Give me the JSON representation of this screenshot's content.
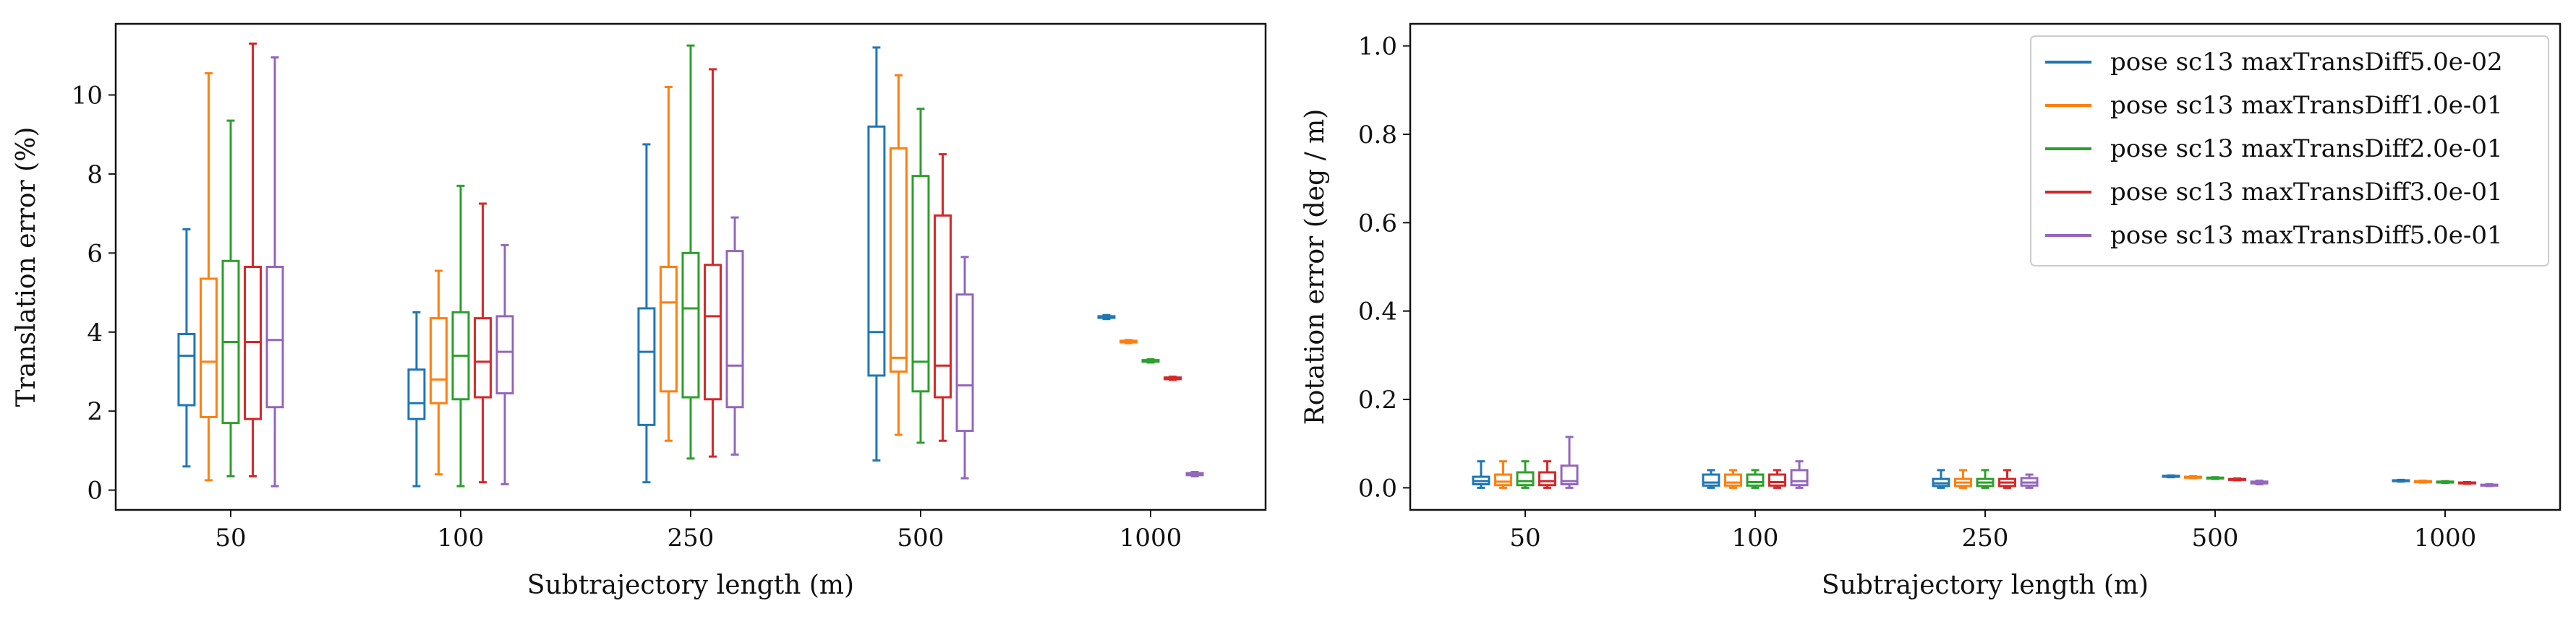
{
  "chart_data": [
    {
      "type": "box",
      "xlabel": "Subtrajectory length (m)",
      "ylabel": "Translation error (%)",
      "categories": [
        "50",
        "100",
        "250",
        "500",
        "1000"
      ],
      "yticks": [
        "0",
        "2",
        "4",
        "6",
        "8",
        "10"
      ],
      "ylim": [
        -0.5,
        11.8
      ],
      "grid": false,
      "series": [
        {
          "name": "pose sc13 maxTransDiff5.0e-02",
          "color": "#1f77b4",
          "boxes": [
            {
              "min": 0.6,
              "q1": 2.15,
              "median": 3.4,
              "q3": 3.95,
              "max": 6.6
            },
            {
              "min": 0.1,
              "q1": 1.8,
              "median": 2.2,
              "q3": 3.05,
              "max": 4.5
            },
            {
              "min": 0.2,
              "q1": 1.65,
              "median": 3.5,
              "q3": 4.6,
              "max": 8.75
            },
            {
              "min": 0.75,
              "q1": 2.9,
              "median": 4.0,
              "q3": 9.2,
              "max": 11.2
            },
            {
              "min": 4.33,
              "q1": 4.36,
              "median": 4.38,
              "q3": 4.4,
              "max": 4.43
            }
          ]
        },
        {
          "name": "pose sc13 maxTransDiff1.0e-01",
          "color": "#ff7f0e",
          "boxes": [
            {
              "min": 0.25,
              "q1": 1.85,
              "median": 3.25,
              "q3": 5.35,
              "max": 10.55
            },
            {
              "min": 0.4,
              "q1": 2.2,
              "median": 2.8,
              "q3": 4.35,
              "max": 5.55
            },
            {
              "min": 1.25,
              "q1": 2.5,
              "median": 4.75,
              "q3": 5.65,
              "max": 10.2
            },
            {
              "min": 1.4,
              "q1": 3.0,
              "median": 3.35,
              "q3": 8.65,
              "max": 10.5
            },
            {
              "min": 3.72,
              "q1": 3.74,
              "median": 3.76,
              "q3": 3.78,
              "max": 3.8
            }
          ]
        },
        {
          "name": "pose sc13 maxTransDiff2.0e-01",
          "color": "#2ca02c",
          "boxes": [
            {
              "min": 0.35,
              "q1": 1.7,
              "median": 3.75,
              "q3": 5.8,
              "max": 9.35
            },
            {
              "min": 0.1,
              "q1": 2.3,
              "median": 3.4,
              "q3": 4.5,
              "max": 7.7
            },
            {
              "min": 0.8,
              "q1": 2.35,
              "median": 4.6,
              "q3": 6.0,
              "max": 11.25
            },
            {
              "min": 1.2,
              "q1": 2.5,
              "median": 3.25,
              "q3": 7.95,
              "max": 9.65
            },
            {
              "min": 3.23,
              "q1": 3.25,
              "median": 3.27,
              "q3": 3.29,
              "max": 3.31
            }
          ]
        },
        {
          "name": "pose sc13 maxTransDiff3.0e-01",
          "color": "#d62728",
          "boxes": [
            {
              "min": 0.35,
              "q1": 1.8,
              "median": 3.75,
              "q3": 5.65,
              "max": 11.3
            },
            {
              "min": 0.2,
              "q1": 2.35,
              "median": 3.25,
              "q3": 4.35,
              "max": 7.25
            },
            {
              "min": 0.85,
              "q1": 2.3,
              "median": 4.4,
              "q3": 5.7,
              "max": 10.65
            },
            {
              "min": 1.25,
              "q1": 2.35,
              "median": 3.15,
              "q3": 6.95,
              "max": 8.5
            },
            {
              "min": 2.79,
              "q1": 2.81,
              "median": 2.83,
              "q3": 2.85,
              "max": 2.87
            }
          ]
        },
        {
          "name": "pose sc13 maxTransDiff5.0e-01",
          "color": "#9467bd",
          "boxes": [
            {
              "min": 0.1,
              "q1": 2.1,
              "median": 3.8,
              "q3": 5.65,
              "max": 10.95
            },
            {
              "min": 0.15,
              "q1": 2.45,
              "median": 3.5,
              "q3": 4.4,
              "max": 6.2
            },
            {
              "min": 0.9,
              "q1": 2.1,
              "median": 3.15,
              "q3": 6.05,
              "max": 6.9
            },
            {
              "min": 0.3,
              "q1": 1.5,
              "median": 2.65,
              "q3": 4.95,
              "max": 5.9
            },
            {
              "min": 0.35,
              "q1": 0.38,
              "median": 0.4,
              "q3": 0.43,
              "max": 0.46
            }
          ]
        }
      ]
    },
    {
      "type": "box",
      "xlabel": "Subtrajectory length (m)",
      "ylabel": "Rotation error (deg / m)",
      "categories": [
        "50",
        "100",
        "250",
        "500",
        "1000"
      ],
      "yticks": [
        "0.0",
        "0.2",
        "0.4",
        "0.6",
        "0.8",
        "1.0"
      ],
      "ylim": [
        -0.05,
        1.05
      ],
      "grid": false,
      "legend_position": "upper right",
      "series": [
        {
          "name": "pose sc13 maxTransDiff5.0e-02",
          "color": "#1f77b4",
          "boxes": [
            {
              "min": 0.0,
              "q1": 0.008,
              "median": 0.015,
              "q3": 0.025,
              "max": 0.06
            },
            {
              "min": 0.0,
              "q1": 0.005,
              "median": 0.012,
              "q3": 0.03,
              "max": 0.04
            },
            {
              "min": 0.0,
              "q1": 0.004,
              "median": 0.01,
              "q3": 0.02,
              "max": 0.04
            },
            {
              "min": 0.024,
              "q1": 0.025,
              "median": 0.026,
              "q3": 0.027,
              "max": 0.028
            },
            {
              "min": 0.014,
              "q1": 0.015,
              "median": 0.016,
              "q3": 0.017,
              "max": 0.018
            }
          ]
        },
        {
          "name": "pose sc13 maxTransDiff1.0e-01",
          "color": "#ff7f0e",
          "boxes": [
            {
              "min": 0.0,
              "q1": 0.006,
              "median": 0.014,
              "q3": 0.03,
              "max": 0.06
            },
            {
              "min": 0.0,
              "q1": 0.005,
              "median": 0.012,
              "q3": 0.03,
              "max": 0.04
            },
            {
              "min": 0.0,
              "q1": 0.004,
              "median": 0.012,
              "q3": 0.02,
              "max": 0.04
            },
            {
              "min": 0.022,
              "q1": 0.023,
              "median": 0.024,
              "q3": 0.025,
              "max": 0.026
            },
            {
              "min": 0.012,
              "q1": 0.013,
              "median": 0.014,
              "q3": 0.015,
              "max": 0.016
            }
          ]
        },
        {
          "name": "pose sc13 maxTransDiff2.0e-01",
          "color": "#2ca02c",
          "boxes": [
            {
              "min": 0.0,
              "q1": 0.006,
              "median": 0.015,
              "q3": 0.035,
              "max": 0.06
            },
            {
              "min": 0.0,
              "q1": 0.005,
              "median": 0.013,
              "q3": 0.03,
              "max": 0.04
            },
            {
              "min": 0.0,
              "q1": 0.004,
              "median": 0.012,
              "q3": 0.02,
              "max": 0.04
            },
            {
              "min": 0.02,
              "q1": 0.021,
              "median": 0.022,
              "q3": 0.023,
              "max": 0.024
            },
            {
              "min": 0.011,
              "q1": 0.012,
              "median": 0.013,
              "q3": 0.014,
              "max": 0.015
            }
          ]
        },
        {
          "name": "pose sc13 maxTransDiff3.0e-01",
          "color": "#d62728",
          "boxes": [
            {
              "min": 0.0,
              "q1": 0.006,
              "median": 0.015,
              "q3": 0.035,
              "max": 0.06
            },
            {
              "min": 0.0,
              "q1": 0.005,
              "median": 0.013,
              "q3": 0.03,
              "max": 0.04
            },
            {
              "min": 0.0,
              "q1": 0.004,
              "median": 0.012,
              "q3": 0.02,
              "max": 0.04
            },
            {
              "min": 0.017,
              "q1": 0.018,
              "median": 0.019,
              "q3": 0.02,
              "max": 0.021
            },
            {
              "min": 0.009,
              "q1": 0.01,
              "median": 0.011,
              "q3": 0.012,
              "max": 0.013
            }
          ]
        },
        {
          "name": "pose sc13 maxTransDiff5.0e-01",
          "color": "#9467bd",
          "boxes": [
            {
              "min": 0.0,
              "q1": 0.008,
              "median": 0.015,
              "q3": 0.05,
              "max": 0.115
            },
            {
              "min": 0.0,
              "q1": 0.006,
              "median": 0.015,
              "q3": 0.04,
              "max": 0.06
            },
            {
              "min": 0.0,
              "q1": 0.005,
              "median": 0.012,
              "q3": 0.022,
              "max": 0.03
            },
            {
              "min": 0.008,
              "q1": 0.01,
              "median": 0.012,
              "q3": 0.014,
              "max": 0.016
            },
            {
              "min": 0.004,
              "q1": 0.005,
              "median": 0.006,
              "q3": 0.007,
              "max": 0.008
            }
          ]
        }
      ]
    }
  ]
}
